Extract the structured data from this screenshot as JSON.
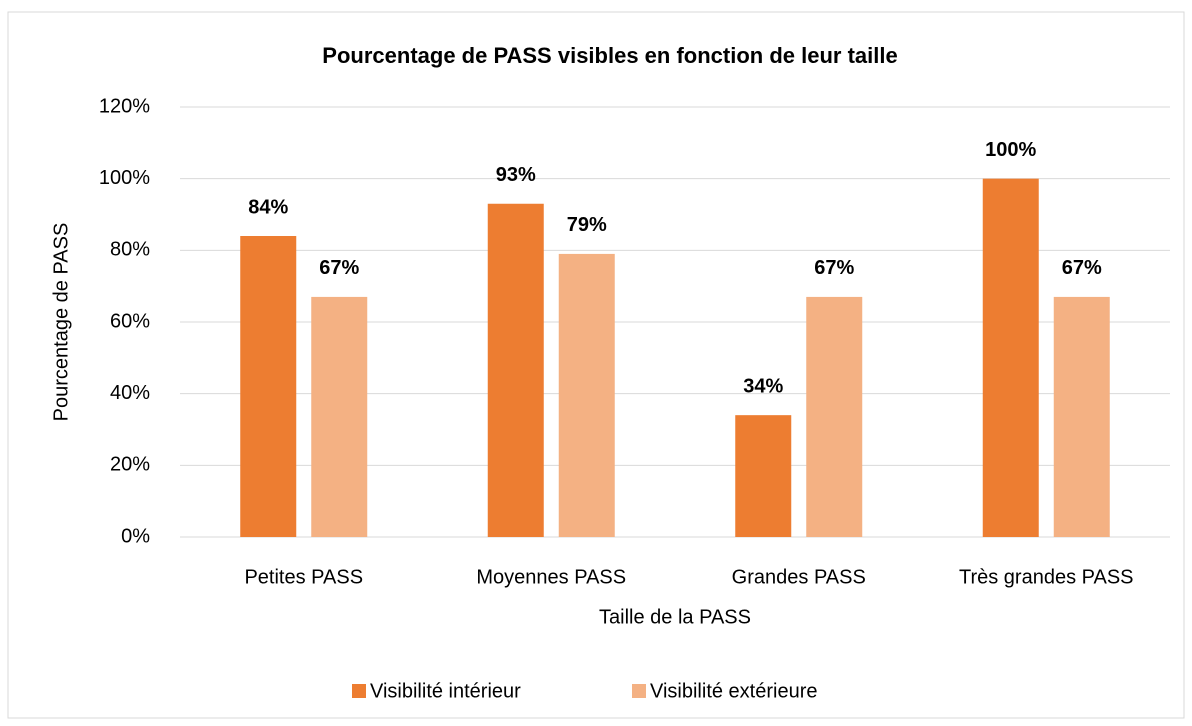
{
  "chart_data": {
    "type": "bar",
    "title": "Pourcentage de PASS visibles en fonction de leur taille",
    "x_label": "Taille de la PASS",
    "y_label": "Pourcentage de PASS",
    "categories": [
      "Petites PASS",
      "Moyennes PASS",
      "Grandes PASS",
      "Très grandes PASS"
    ],
    "series": [
      {
        "name": "Visibilité intérieur",
        "color": "#ED7D31",
        "values": [
          84,
          93,
          34,
          100
        ],
        "value_labels": [
          "84%",
          "93%",
          "34%",
          "100%"
        ]
      },
      {
        "name": "Visibilité extérieure",
        "color": "#F4B183",
        "values": [
          67,
          79,
          67,
          67
        ],
        "value_labels": [
          "67%",
          "79%",
          "67%",
          "67%"
        ]
      }
    ],
    "ylim": [
      0,
      120
    ],
    "yticks": [
      {
        "value": 0,
        "label": "0%"
      },
      {
        "value": 20,
        "label": "20%"
      },
      {
        "value": 40,
        "label": "40%"
      },
      {
        "value": 60,
        "label": "60%"
      },
      {
        "value": 80,
        "label": "80%"
      },
      {
        "value": 100,
        "label": "100%"
      },
      {
        "value": 120,
        "label": "120%"
      }
    ],
    "grid": true,
    "legend": "bottom"
  }
}
